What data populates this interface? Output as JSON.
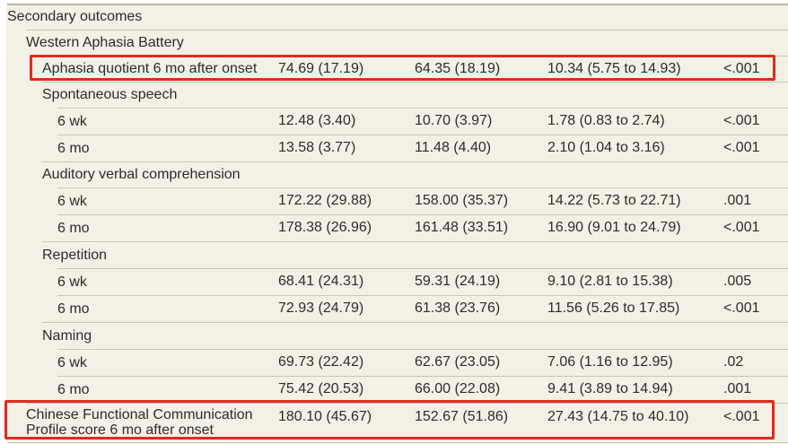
{
  "table": {
    "section_title": "Secondary outcomes",
    "rows": [
      {
        "label": "Secondary outcomes",
        "c1": "",
        "c2": "",
        "c3": "",
        "c4": ""
      },
      {
        "label": "Western Aphasia Battery",
        "c1": "",
        "c2": "",
        "c3": "",
        "c4": ""
      },
      {
        "label": "Aphasia quotient 6 mo after onset",
        "c1": "74.69 (17.19)",
        "c2": "64.35 (18.19)",
        "c3": "10.34 (5.75 to 14.93)",
        "c4": "<.001"
      },
      {
        "label": "Spontaneous speech",
        "c1": "",
        "c2": "",
        "c3": "",
        "c4": ""
      },
      {
        "label": "6 wk",
        "c1": "12.48 (3.40)",
        "c2": "10.70 (3.97)",
        "c3": "1.78 (0.83 to 2.74)",
        "c4": "<.001"
      },
      {
        "label": "6 mo",
        "c1": "13.58 (3.77)",
        "c2": "11.48 (4.40)",
        "c3": "2.10 (1.04 to 3.16)",
        "c4": "<.001"
      },
      {
        "label": "Auditory verbal comprehension",
        "c1": "",
        "c2": "",
        "c3": "",
        "c4": ""
      },
      {
        "label": "6 wk",
        "c1": "172.22 (29.88)",
        "c2": "158.00 (35.37)",
        "c3": "14.22 (5.73 to 22.71)",
        "c4": ".001"
      },
      {
        "label": "6 mo",
        "c1": "178.38 (26.96)",
        "c2": "161.48 (33.51)",
        "c3": "16.90 (9.01 to 24.79)",
        "c4": "<.001"
      },
      {
        "label": "Repetition",
        "c1": "",
        "c2": "",
        "c3": "",
        "c4": ""
      },
      {
        "label": "6 wk",
        "c1": "68.41 (24.31)",
        "c2": "59.31 (24.19)",
        "c3": "9.10 (2.81 to 15.38)",
        "c4": ".005"
      },
      {
        "label": "6 mo",
        "c1": "72.93 (24.79)",
        "c2": "61.38 (23.76)",
        "c3": "11.56 (5.26 to 17.85)",
        "c4": "<.001"
      },
      {
        "label": "Naming",
        "c1": "",
        "c2": "",
        "c3": "",
        "c4": ""
      },
      {
        "label": "6 wk",
        "c1": "69.73 (22.42)",
        "c2": "62.67 (23.05)",
        "c3": "7.06 (1.16 to 12.95)",
        "c4": ".02"
      },
      {
        "label": "6 mo",
        "c1": "75.42 (20.53)",
        "c2": "66.00 (22.08)",
        "c3": "9.41 (3.89 to 14.94)",
        "c4": ".001"
      },
      {
        "label": "Chinese Functional Communication Profile score 6 mo after onset",
        "c1": "180.10 (45.67)",
        "c2": "152.67 (51.86)",
        "c3": "27.43 (14.75 to 40.10)",
        "c4": "<.001"
      }
    ],
    "highlighted_rows": [
      "Aphasia quotient 6 mo after onset",
      "Chinese Functional Communication Profile score 6 mo after onset"
    ]
  },
  "colors": {
    "panel_background": "#f3f0e5",
    "row_divider": "#c9c6ba",
    "text": "#2d2c27",
    "highlight_border": "#e02b1e",
    "page_margin": "#ffffff"
  }
}
